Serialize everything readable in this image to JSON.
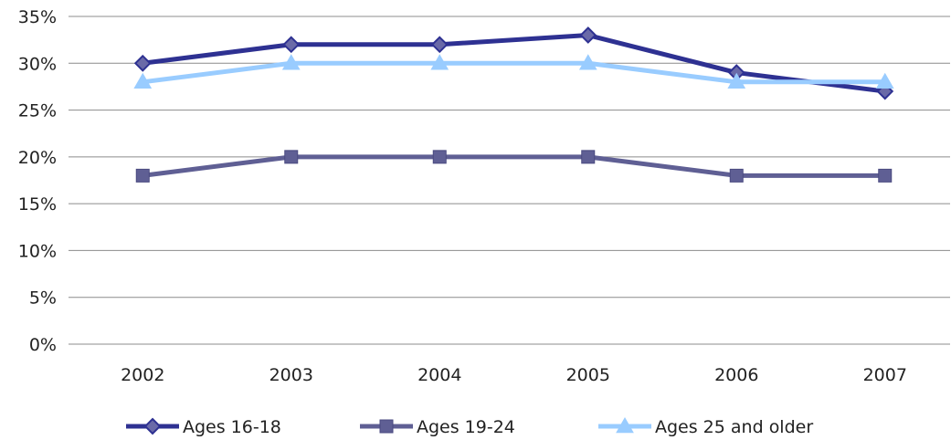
{
  "chart_data": {
    "type": "line",
    "title": "",
    "xlabel": "",
    "ylabel": "",
    "categories": [
      "2002",
      "2003",
      "2004",
      "2005",
      "2006",
      "2007"
    ],
    "y_ticks": [
      "0%",
      "5%",
      "10%",
      "15%",
      "20%",
      "25%",
      "30%",
      "35%"
    ],
    "ylim": [
      0,
      35
    ],
    "y_unit": "%",
    "grid": "horizontal",
    "legend_position": "bottom",
    "series": [
      {
        "name": "Ages 16-18",
        "values": [
          30,
          32,
          32,
          33,
          29,
          27
        ],
        "color": "#2E3192",
        "marker": "diamond"
      },
      {
        "name": "Ages 19-24",
        "values": [
          18,
          20,
          20,
          20,
          18,
          18
        ],
        "color": "#5F5F94",
        "marker": "square"
      },
      {
        "name": "Ages 25 and older",
        "values": [
          28,
          30,
          30,
          30,
          28,
          28
        ],
        "color": "#99CCFF",
        "marker": "triangle"
      }
    ]
  }
}
